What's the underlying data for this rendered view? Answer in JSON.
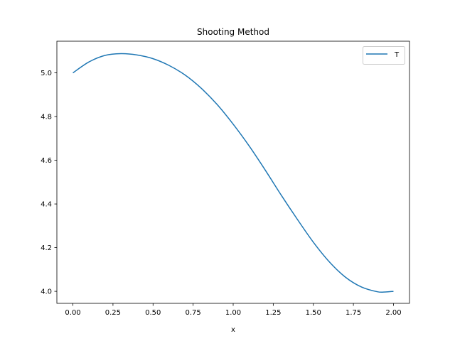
{
  "chart_data": {
    "type": "line",
    "title": "Shooting Method",
    "xlabel": "x",
    "ylabel": "",
    "xlim": [
      -0.1,
      2.1
    ],
    "ylim": [
      3.945,
      5.145
    ],
    "x_ticks": [
      0.0,
      0.25,
      0.5,
      0.75,
      1.0,
      1.25,
      1.5,
      1.75,
      2.0
    ],
    "x_tick_labels": [
      "0.00",
      "0.25",
      "0.50",
      "0.75",
      "1.00",
      "1.25",
      "1.50",
      "1.75",
      "2.00"
    ],
    "y_ticks": [
      4.0,
      4.2,
      4.4,
      4.6,
      4.8,
      5.0
    ],
    "y_tick_labels": [
      "4.0",
      "4.2",
      "4.4",
      "4.6",
      "4.8",
      "5.0"
    ],
    "grid": false,
    "legend_position": "top-right",
    "series": [
      {
        "name": "T",
        "color": "#1f77b4",
        "x": [
          0.0,
          0.1,
          0.2,
          0.3,
          0.4,
          0.5,
          0.6,
          0.7,
          0.8,
          0.9,
          1.0,
          1.1,
          1.2,
          1.3,
          1.4,
          1.5,
          1.6,
          1.7,
          1.8,
          1.9,
          1.95,
          2.0
        ],
        "y": [
          5.0,
          5.05,
          5.08,
          5.088,
          5.082,
          5.065,
          5.034,
          4.99,
          4.93,
          4.855,
          4.765,
          4.665,
          4.555,
          4.44,
          4.33,
          4.225,
          4.135,
          4.065,
          4.02,
          3.998,
          3.997,
          4.0
        ]
      }
    ]
  }
}
